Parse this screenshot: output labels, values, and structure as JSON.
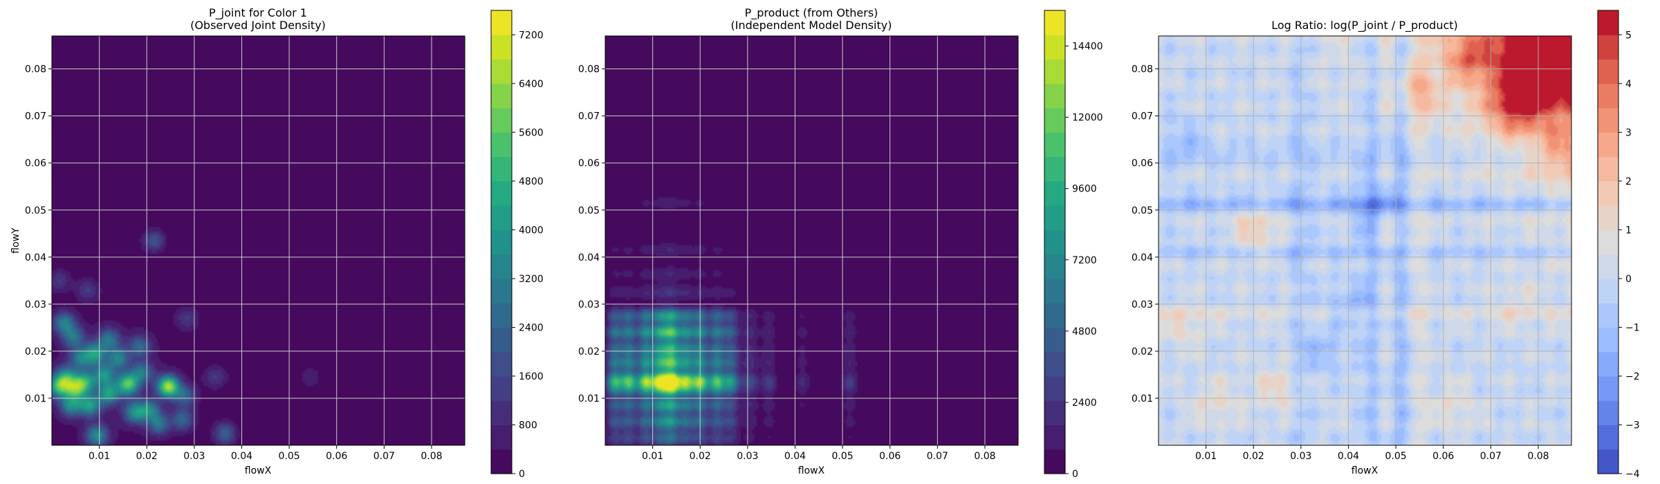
{
  "chart_data": [
    {
      "type": "heatmap",
      "title": "P_joint for Color 1",
      "subtitle": "(Observed Joint Density)",
      "xlabel": "flowX",
      "ylabel": "flowY",
      "xlim": [
        0,
        0.087
      ],
      "ylim": [
        0,
        0.087
      ],
      "xticks": [
        "0.01",
        "0.02",
        "0.03",
        "0.04",
        "0.05",
        "0.06",
        "0.07",
        "0.08"
      ],
      "yticks": [
        "0.01",
        "0.02",
        "0.03",
        "0.04",
        "0.05",
        "0.06",
        "0.07",
        "0.08"
      ],
      "grid": true,
      "colormap": "viridis",
      "colorbar": {
        "min": 0,
        "max": 7600,
        "ticks": [
          "0",
          "800",
          "1600",
          "2400",
          "3200",
          "4000",
          "4800",
          "5600",
          "6400",
          "7200"
        ]
      },
      "background_color": "#440154",
      "blobs": [
        {
          "x": 0.0015,
          "y": 0.0125,
          "level": 0.6
        },
        {
          "x": 0.003,
          "y": 0.0145,
          "level": 0.45
        },
        {
          "x": 0.005,
          "y": 0.012,
          "level": 0.55
        },
        {
          "x": 0.007,
          "y": 0.0135,
          "level": 0.5
        },
        {
          "x": 0.004,
          "y": 0.0085,
          "level": 0.45
        },
        {
          "x": 0.008,
          "y": 0.0085,
          "level": 0.5
        },
        {
          "x": 0.009,
          "y": 0.0195,
          "level": 0.5
        },
        {
          "x": 0.011,
          "y": 0.015,
          "level": 0.45
        },
        {
          "x": 0.012,
          "y": 0.011,
          "level": 0.5
        },
        {
          "x": 0.0095,
          "y": 0.002,
          "level": 0.45
        },
        {
          "x": 0.012,
          "y": 0.0225,
          "level": 0.35
        },
        {
          "x": 0.014,
          "y": 0.0185,
          "level": 0.4
        },
        {
          "x": 0.016,
          "y": 0.013,
          "level": 0.7
        },
        {
          "x": 0.0175,
          "y": 0.007,
          "level": 0.45
        },
        {
          "x": 0.019,
          "y": 0.0155,
          "level": 0.35
        },
        {
          "x": 0.0205,
          "y": 0.0075,
          "level": 0.4
        },
        {
          "x": 0.0225,
          "y": 0.0045,
          "level": 0.35
        },
        {
          "x": 0.0245,
          "y": 0.0125,
          "level": 0.85
        },
        {
          "x": 0.028,
          "y": 0.0105,
          "level": 0.3
        },
        {
          "x": 0.0275,
          "y": 0.0055,
          "level": 0.3
        },
        {
          "x": 0.0185,
          "y": 0.021,
          "level": 0.3
        },
        {
          "x": 0.0215,
          "y": 0.0435,
          "level": 0.25
        },
        {
          "x": 0.0025,
          "y": 0.026,
          "level": 0.4
        },
        {
          "x": 0.0045,
          "y": 0.023,
          "level": 0.35
        },
        {
          "x": 0.006,
          "y": 0.0185,
          "level": 0.35
        },
        {
          "x": 0.0015,
          "y": 0.035,
          "level": 0.15
        },
        {
          "x": 0.0075,
          "y": 0.033,
          "level": 0.15
        },
        {
          "x": 0.0285,
          "y": 0.027,
          "level": 0.15
        },
        {
          "x": 0.0345,
          "y": 0.0145,
          "level": 0.15
        },
        {
          "x": 0.0365,
          "y": 0.0025,
          "level": 0.3
        },
        {
          "x": 0.0545,
          "y": 0.0145,
          "level": 0.1
        }
      ]
    },
    {
      "type": "heatmap",
      "title": "P_product (from Others)",
      "subtitle": "(Independent Model Density)",
      "xlabel": "flowX",
      "ylabel": "",
      "xlim": [
        0,
        0.087
      ],
      "ylim": [
        0,
        0.087
      ],
      "xticks": [
        "0.01",
        "0.02",
        "0.03",
        "0.04",
        "0.05",
        "0.06",
        "0.07",
        "0.08"
      ],
      "yticks": [
        "0.01",
        "0.02",
        "0.03",
        "0.04",
        "0.05",
        "0.06",
        "0.07",
        "0.08"
      ],
      "grid": true,
      "colormap": "viridis",
      "colorbar": {
        "min": 0,
        "max": 15600,
        "ticks": [
          "0",
          "2400",
          "4800",
          "7200",
          "9600",
          "12000",
          "14400"
        ]
      },
      "background_color": "#440154",
      "grid_x_centers": [
        0.002,
        0.005,
        0.0085,
        0.0115,
        0.014,
        0.017,
        0.02,
        0.0235,
        0.0265,
        0.0305,
        0.0345,
        0.0415,
        0.0515
      ],
      "grid_x_weights": [
        0.55,
        0.6,
        0.7,
        0.8,
        1.0,
        0.7,
        0.7,
        0.6,
        0.45,
        0.2,
        0.15,
        0.1,
        0.15
      ],
      "grid_y_centers": [
        0.0015,
        0.005,
        0.0085,
        0.012,
        0.014,
        0.0175,
        0.0205,
        0.024,
        0.0275,
        0.0325,
        0.0365,
        0.0415,
        0.0515
      ],
      "grid_y_weights": [
        0.35,
        0.5,
        0.55,
        0.7,
        1.0,
        0.7,
        0.6,
        0.7,
        0.55,
        0.15,
        0.1,
        0.1,
        0.08
      ]
    },
    {
      "type": "heatmap",
      "title": "Log Ratio: log(P_joint / P_product)",
      "xlabel": "flowX",
      "ylabel": "",
      "xlim": [
        0,
        0.087
      ],
      "ylim": [
        0,
        0.087
      ],
      "xticks": [
        "0.01",
        "0.02",
        "0.03",
        "0.04",
        "0.05",
        "0.06",
        "0.07",
        "0.08"
      ],
      "yticks": [
        "0.01",
        "0.02",
        "0.03",
        "0.04",
        "0.05",
        "0.06",
        "0.07",
        "0.08"
      ],
      "grid": true,
      "colormap": "coolwarm",
      "colorbar": {
        "min": -4,
        "max": 5.5,
        "ticks": [
          "−4",
          "−3",
          "−2",
          "−1",
          "0",
          "1",
          "2",
          "3",
          "4",
          "5"
        ]
      },
      "hotspots": [
        {
          "x": 0.08,
          "y": 0.08,
          "value": 4.0
        },
        {
          "x": 0.085,
          "y": 0.085,
          "value": 4.5
        },
        {
          "x": 0.075,
          "y": 0.072,
          "value": 2.6
        },
        {
          "x": 0.065,
          "y": 0.083,
          "value": 2.4
        },
        {
          "x": 0.085,
          "y": 0.062,
          "value": 2.0
        },
        {
          "x": 0.055,
          "y": 0.075,
          "value": 1.6
        },
        {
          "x": 0.0205,
          "y": 0.0455,
          "value": 1.6
        },
        {
          "x": 0.025,
          "y": 0.012,
          "value": 1.2
        },
        {
          "x": 0.012,
          "y": 0.009,
          "value": 1.0
        },
        {
          "x": 0.005,
          "y": 0.025,
          "value": 0.9
        },
        {
          "x": 0.062,
          "y": 0.008,
          "value": 0.9
        },
        {
          "x": 0.05,
          "y": 0.045,
          "value": 0.8
        },
        {
          "x": 0.075,
          "y": 0.03,
          "value": 0.6
        },
        {
          "x": 0.035,
          "y": 0.02,
          "value": -1.0
        },
        {
          "x": 0.045,
          "y": 0.05,
          "value": -1.2
        },
        {
          "x": 0.005,
          "y": 0.065,
          "value": -0.9
        },
        {
          "x": 0.04,
          "y": 0.03,
          "value": -1.1
        }
      ],
      "bands": [
        {
          "axis": "y",
          "at": 0.0515,
          "value": -1.5
        },
        {
          "axis": "x",
          "at": 0.0515,
          "value": -1.3
        },
        {
          "axis": "y",
          "at": 0.0415,
          "value": -0.8
        },
        {
          "axis": "x",
          "at": 0.0445,
          "value": -1.0
        },
        {
          "axis": "y",
          "at": 0.062,
          "value": -0.7
        },
        {
          "axis": "x",
          "at": 0.03,
          "value": -0.8
        },
        {
          "axis": "y",
          "at": 0.0275,
          "value": 0.6
        },
        {
          "axis": "x",
          "at": 0.0545,
          "value": 0.8
        }
      ]
    }
  ]
}
